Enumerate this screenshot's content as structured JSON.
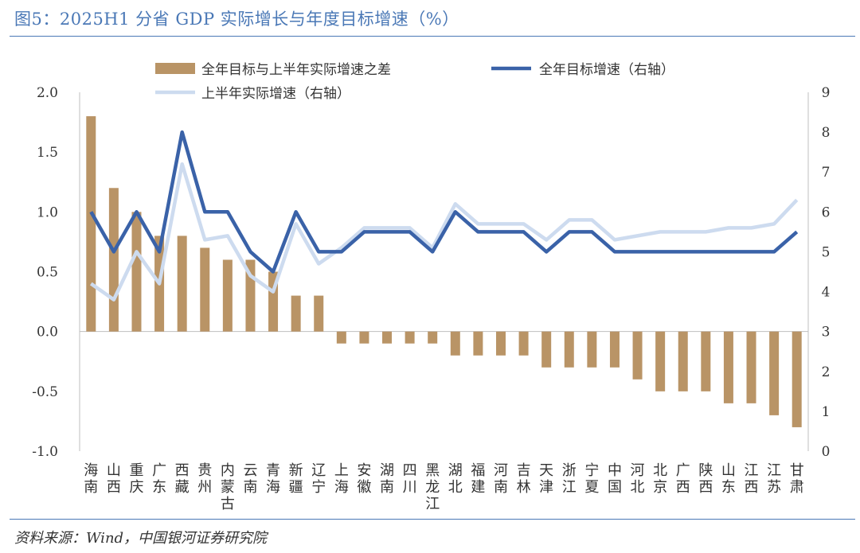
{
  "title": "图5：2025H1 分省 GDP 实际增长与年度目标增速（%）",
  "source": "资料来源：Wind，中国银河证券研究院",
  "colors": {
    "bar": "#b99466",
    "target_line": "#3a62a8",
    "h1_line": "#cddbef",
    "title": "#4a78b6"
  },
  "chart_data": {
    "type": "bar+line",
    "categories": [
      "海南",
      "山西",
      "重庆",
      "广东",
      "西藏",
      "贵州",
      "内蒙古",
      "云南",
      "青海",
      "新疆",
      "辽宁",
      "上海",
      "安徽",
      "湖南",
      "四川",
      "黑龙江",
      "湖北",
      "福建",
      "河南",
      "吉林",
      "天津",
      "浙江",
      "宁夏",
      "中国",
      "河北",
      "北京",
      "广西",
      "陕西",
      "山东",
      "江西",
      "江苏",
      "甘肃"
    ],
    "left_axis": {
      "min": -1.0,
      "max": 2.0,
      "ticks": [
        2.0,
        1.5,
        1.0,
        0.5,
        0.0,
        -0.5,
        -1.0
      ],
      "tick_labels": [
        "2.0",
        "1.5",
        "1.0",
        "0.5",
        "0.0",
        "-0.5",
        "-1.0"
      ]
    },
    "right_axis": {
      "min": 0,
      "max": 9,
      "ticks": [
        9,
        8,
        7,
        6,
        5,
        4,
        3,
        2,
        1,
        0
      ],
      "tick_labels": [
        "9",
        "8",
        "7",
        "6",
        "5",
        "4",
        "3",
        "2",
        "1",
        "0"
      ]
    },
    "series": [
      {
        "name": "全年目标与上半年实际增速之差",
        "type": "bar",
        "axis": "left",
        "values": [
          1.8,
          1.2,
          1.0,
          0.8,
          0.8,
          0.7,
          0.6,
          0.6,
          0.5,
          0.3,
          0.3,
          -0.1,
          -0.1,
          -0.1,
          -0.1,
          -0.1,
          -0.2,
          -0.2,
          -0.2,
          -0.2,
          -0.3,
          -0.3,
          -0.3,
          -0.3,
          -0.4,
          -0.5,
          -0.5,
          -0.5,
          -0.6,
          -0.6,
          -0.7,
          -0.8
        ]
      },
      {
        "name": "全年目标增速（右轴）",
        "type": "line",
        "axis": "right",
        "values": [
          6.0,
          5.0,
          6.0,
          5.0,
          8.0,
          6.0,
          6.0,
          5.0,
          4.5,
          6.0,
          5.0,
          5.0,
          5.5,
          5.5,
          5.5,
          5.0,
          6.0,
          5.5,
          5.5,
          5.5,
          5.0,
          5.5,
          5.5,
          5.0,
          5.0,
          5.0,
          5.0,
          5.0,
          5.0,
          5.0,
          5.0,
          5.5
        ]
      },
      {
        "name": "上半年实际增速（右轴）",
        "type": "line",
        "axis": "right",
        "values": [
          4.2,
          3.8,
          5.0,
          4.2,
          7.2,
          5.3,
          5.4,
          4.4,
          4.0,
          5.7,
          4.7,
          5.1,
          5.6,
          5.6,
          5.6,
          5.1,
          6.2,
          5.7,
          5.7,
          5.7,
          5.3,
          5.8,
          5.8,
          5.3,
          5.4,
          5.5,
          5.5,
          5.5,
          5.6,
          5.6,
          5.7,
          6.3
        ]
      }
    ]
  }
}
